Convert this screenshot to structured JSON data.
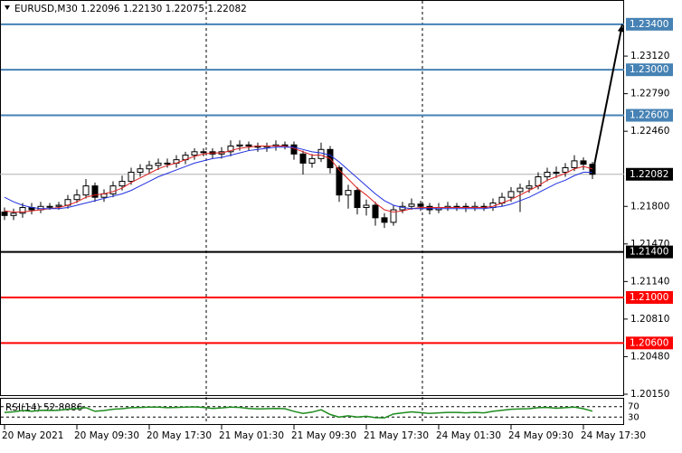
{
  "chart_data": {
    "type": "candlestick",
    "symbol_header": "EURUSD,M30  1.22096 1.22130 1.22075 1.22082",
    "open": [
      1.2175,
      1.2172,
      1.2174,
      1.2179,
      1.2177,
      1.218,
      1.218,
      1.2181,
      1.2186,
      1.219,
      1.2198,
      1.2188,
      1.2191,
      1.2198,
      1.2202,
      1.221,
      1.2213,
      1.2216,
      1.2218,
      1.2218,
      1.2221,
      1.2225,
      1.2228,
      1.2228,
      1.2226,
      1.2228,
      1.2233,
      1.2234,
      1.2233,
      1.2232,
      1.2233,
      1.2234,
      1.2234,
      1.2226,
      1.2218,
      1.2222,
      1.223,
      1.2214,
      1.219,
      1.2194,
      1.2179,
      1.2181,
      1.217,
      1.2166,
      1.2177,
      1.218,
      1.2182,
      1.218,
      1.2177,
      1.2179,
      1.218,
      1.218,
      1.2179,
      1.218,
      1.2179,
      1.2183,
      1.2188,
      1.2193,
      1.2196,
      1.2198,
      1.2206,
      1.221,
      1.221,
      1.2214,
      1.222,
      1.2217
    ],
    "high": [
      1.2179,
      1.2178,
      1.2183,
      1.2183,
      1.2184,
      1.2183,
      1.2184,
      1.219,
      1.2195,
      1.2204,
      1.2201,
      1.2195,
      1.2202,
      1.2207,
      1.2214,
      1.2217,
      1.222,
      1.2222,
      1.2222,
      1.2225,
      1.2228,
      1.2231,
      1.2231,
      1.2231,
      1.2232,
      1.2238,
      1.2238,
      1.2237,
      1.2236,
      1.2236,
      1.2238,
      1.2237,
      1.2237,
      1.2229,
      1.2226,
      1.2236,
      1.2233,
      1.2216,
      1.2199,
      1.2197,
      1.2186,
      1.2184,
      1.2174,
      1.2181,
      1.2184,
      1.2187,
      1.2185,
      1.2183,
      1.2183,
      1.2184,
      1.2183,
      1.2183,
      1.2184,
      1.2183,
      1.2187,
      1.2192,
      1.2197,
      1.22,
      1.2203,
      1.221,
      1.2214,
      1.2215,
      1.2218,
      1.2225,
      1.2223,
      1.2219
    ],
    "low": [
      1.2168,
      1.2168,
      1.217,
      1.2173,
      1.2174,
      1.2177,
      1.2177,
      1.2178,
      1.2183,
      1.2187,
      1.2184,
      1.2184,
      1.2188,
      1.2194,
      1.2199,
      1.2206,
      1.2209,
      1.2212,
      1.2214,
      1.2214,
      1.2217,
      1.2221,
      1.2224,
      1.2222,
      1.2222,
      1.2224,
      1.2229,
      1.2229,
      1.2228,
      1.2228,
      1.2229,
      1.223,
      1.2221,
      1.2208,
      1.2214,
      1.2219,
      1.2209,
      1.2184,
      1.2178,
      1.2173,
      1.2172,
      1.2163,
      1.2161,
      1.2163,
      1.2174,
      1.2177,
      1.2176,
      1.2173,
      1.2174,
      1.2176,
      1.2176,
      1.2175,
      1.2176,
      1.2176,
      1.2176,
      1.218,
      1.2184,
      1.2175,
      1.2192,
      1.2195,
      1.2202,
      1.2205,
      1.2206,
      1.2211,
      1.2212,
      1.2204
    ],
    "close": [
      1.2172,
      1.2174,
      1.2179,
      1.2177,
      1.218,
      1.218,
      1.2181,
      1.2186,
      1.219,
      1.2198,
      1.2188,
      1.2191,
      1.2198,
      1.2202,
      1.221,
      1.2213,
      1.2216,
      1.2218,
      1.2218,
      1.2221,
      1.2225,
      1.2228,
      1.2228,
      1.2226,
      1.2228,
      1.2233,
      1.2234,
      1.2233,
      1.2232,
      1.2233,
      1.2234,
      1.2234,
      1.2226,
      1.2218,
      1.2222,
      1.223,
      1.2214,
      1.219,
      1.2194,
      1.2179,
      1.2181,
      1.217,
      1.2166,
      1.2177,
      1.218,
      1.2182,
      1.218,
      1.2177,
      1.2179,
      1.218,
      1.218,
      1.2179,
      1.218,
      1.2179,
      1.2183,
      1.2188,
      1.2193,
      1.2196,
      1.2198,
      1.2206,
      1.221,
      1.221,
      1.2214,
      1.222,
      1.2217,
      1.22082
    ],
    "ma_lines": [
      {
        "color": "#e02020",
        "values": [
          1.2176,
          1.2175,
          1.2175,
          1.2176,
          1.2177,
          1.2178,
          1.2179,
          1.2181,
          1.2184,
          1.2188,
          1.219,
          1.2191,
          1.2193,
          1.2196,
          1.2201,
          1.2205,
          1.2209,
          1.2213,
          1.2216,
          1.2218,
          1.2221,
          1.2224,
          1.2226,
          1.2227,
          1.2227,
          1.2229,
          1.2231,
          1.2232,
          1.2233,
          1.2233,
          1.2233,
          1.2233,
          1.2231,
          1.2228,
          1.2225,
          1.2225,
          1.2222,
          1.2212,
          1.2204,
          1.2196,
          1.219,
          1.2183,
          1.2177,
          1.2175,
          1.2176,
          1.2178,
          1.2179,
          1.2179,
          1.2179,
          1.2179,
          1.2179,
          1.2179,
          1.2179,
          1.2179,
          1.218,
          1.2183,
          1.2186,
          1.219,
          1.2194,
          1.2198,
          1.2203,
          1.2206,
          1.2209,
          1.2213,
          1.2215,
          1.2213
        ]
      },
      {
        "color": "#2030e0",
        "values": [
          1.2188,
          1.2184,
          1.2181,
          1.2179,
          1.2178,
          1.2178,
          1.2178,
          1.2179,
          1.2181,
          1.2183,
          1.2185,
          1.2187,
          1.2189,
          1.2191,
          1.2194,
          1.2198,
          1.2202,
          1.2206,
          1.2209,
          1.2212,
          1.2215,
          1.2218,
          1.222,
          1.2222,
          1.2223,
          1.2225,
          1.2227,
          1.2229,
          1.223,
          1.2231,
          1.2232,
          1.2232,
          1.2232,
          1.223,
          1.2228,
          1.2227,
          1.2225,
          1.2219,
          1.2212,
          1.2205,
          1.2198,
          1.2191,
          1.2185,
          1.2181,
          1.2179,
          1.2178,
          1.2178,
          1.2178,
          1.2178,
          1.2178,
          1.2178,
          1.2178,
          1.2178,
          1.2178,
          1.2179,
          1.218,
          1.2182,
          1.2185,
          1.2188,
          1.2192,
          1.2196,
          1.22,
          1.2203,
          1.2207,
          1.221,
          1.221
        ]
      }
    ],
    "ylim": [
      1.20134,
      1.23613
    ],
    "yticks": [
      {
        "value": 1.2312,
        "label": "1.23120"
      },
      {
        "value": 1.2279,
        "label": "1.22790"
      },
      {
        "value": 1.2246,
        "label": "1.22460"
      },
      {
        "value": 1.218,
        "label": "1.21800"
      },
      {
        "value": 1.2147,
        "label": "1.21470"
      },
      {
        "value": 1.2114,
        "label": "1.21140"
      },
      {
        "value": 1.2081,
        "label": "1.20810"
      },
      {
        "value": 1.2048,
        "label": "1.20480"
      },
      {
        "value": 1.2015,
        "label": "1.20150"
      }
    ],
    "levels": [
      {
        "value": 1.234,
        "label": "1.23400",
        "color": "#4682b4"
      },
      {
        "value": 1.23,
        "label": "1.23000",
        "color": "#4682b4"
      },
      {
        "value": 1.226,
        "label": "1.22600",
        "color": "#4682b4"
      },
      {
        "value": 1.214,
        "label": "1.21400",
        "color": "#000000"
      },
      {
        "value": 1.21,
        "label": "1.21000",
        "color": "#ff0000"
      },
      {
        "value": 1.206,
        "label": "1.20600",
        "color": "#ff0000"
      }
    ],
    "last_price": {
      "value": 1.22082,
      "label": "1.22082"
    },
    "xticks": [
      {
        "value": 0,
        "label": "20 May 2021"
      },
      {
        "value": 8,
        "label": "20 May 09:30"
      },
      {
        "value": 16,
        "label": "20 May 17:30"
      },
      {
        "value": 24,
        "label": "21 May 01:30"
      },
      {
        "value": 32,
        "label": "21 May 09:30"
      },
      {
        "value": 40,
        "label": "21 May 17:30"
      },
      {
        "value": 48,
        "label": "24 May 01:30"
      },
      {
        "value": 56,
        "label": "24 May 09:30"
      },
      {
        "value": 64,
        "label": "24 May 17:30"
      }
    ],
    "rsi": {
      "label": "RSI(14) 52.8086",
      "color": "#1e8c1e",
      "ylim": [
        0,
        100
      ],
      "yticks": [
        70,
        30
      ],
      "values": [
        48,
        50,
        55,
        52,
        56,
        55,
        56,
        60,
        62,
        66,
        52,
        55,
        60,
        62,
        66,
        67,
        68,
        68,
        66,
        67,
        68,
        69,
        67,
        63,
        65,
        68,
        67,
        63,
        61,
        62,
        63,
        62,
        52,
        44,
        49,
        58,
        40,
        30,
        35,
        30,
        33,
        28,
        27,
        42,
        46,
        50,
        47,
        44,
        46,
        48,
        48,
        46,
        48,
        46,
        52,
        56,
        60,
        61,
        62,
        66,
        67,
        64,
        66,
        68,
        62,
        52.8086
      ]
    }
  }
}
